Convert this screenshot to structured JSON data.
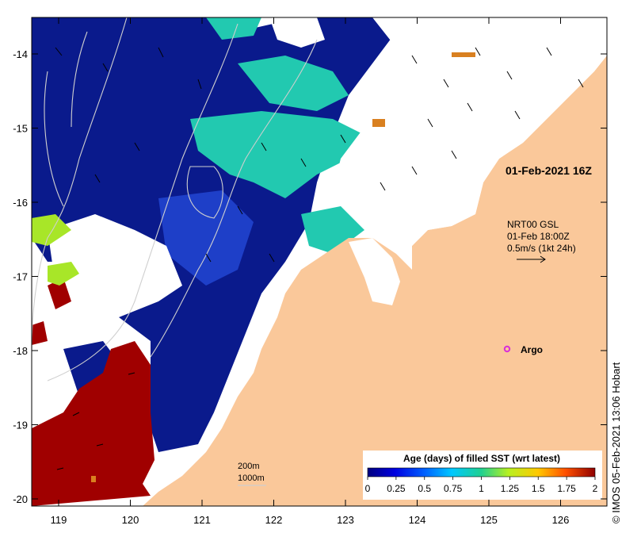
{
  "map": {
    "lon_ticks": [
      "119",
      "120",
      "121",
      "122",
      "123",
      "124",
      "125",
      "126"
    ],
    "lat_ticks": [
      "-14",
      "-15",
      "-16",
      "-17",
      "-18",
      "-19",
      "-20"
    ],
    "timestamp_label": "01-Feb-2021 16Z",
    "current_legend": {
      "line1": "NRT00 GSL",
      "line2": "01-Feb 18:00Z",
      "line3": "0.5m/s (1kt 24h)"
    },
    "argo_label": "Argo",
    "isobaths": [
      "200m",
      "1000m"
    ],
    "credit": "IMOS 05-Feb-2021 13:06 Hobart",
    "colorbar": {
      "title": "Age (days) of filled SST (wrt latest)",
      "ticks": [
        "0",
        "0.25",
        "0.5",
        "0.75",
        "1",
        "1.25",
        "1.5",
        "1.75",
        "2"
      ]
    },
    "colors": {
      "land": "#FAC89A",
      "deep_blue": "#0A1A8C",
      "mid_blue": "#1E3FC8",
      "teal": "#22C9B0",
      "lime": "#A8E628",
      "red": "#A00000",
      "argo": "#D830D8"
    }
  }
}
